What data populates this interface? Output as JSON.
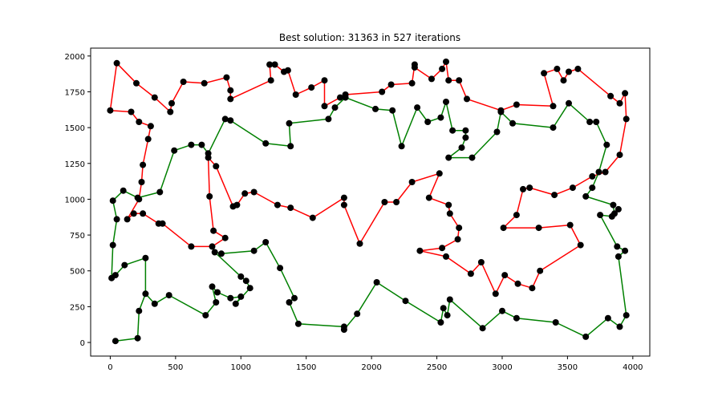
{
  "chart_data": {
    "type": "line",
    "title": "Best solution: 31363 in 527 iterations",
    "xlim": [
      -150,
      4130
    ],
    "ylim": [
      -95,
      2055
    ],
    "x_ticks": [
      0,
      500,
      1000,
      1500,
      2000,
      2500,
      3000,
      3500,
      4000
    ],
    "y_ticks": [
      0,
      250,
      500,
      750,
      1000,
      1250,
      1500,
      1750,
      2000
    ],
    "grid": false,
    "series": [
      {
        "color": "#ff0000",
        "points": [
          [
            0,
            1620
          ],
          [
            50,
            1950
          ],
          [
            200,
            1810
          ],
          [
            340,
            1710
          ],
          [
            460,
            1610
          ],
          [
            470,
            1670
          ],
          [
            560,
            1820
          ],
          [
            720,
            1810
          ],
          [
            890,
            1850
          ],
          [
            920,
            1760
          ],
          [
            920,
            1700
          ],
          [
            1230,
            1830
          ],
          [
            1220,
            1940
          ],
          [
            1260,
            1940
          ],
          [
            1330,
            1890
          ],
          [
            1360,
            1900
          ],
          [
            1420,
            1730
          ],
          [
            1540,
            1780
          ],
          [
            1640,
            1830
          ],
          [
            1640,
            1650
          ],
          [
            1760,
            1710
          ],
          [
            1800,
            1730
          ],
          [
            2080,
            1750
          ],
          [
            2150,
            1800
          ],
          [
            2310,
            1810
          ],
          [
            2330,
            1940
          ],
          [
            2330,
            1920
          ],
          [
            2460,
            1840
          ],
          [
            2540,
            1910
          ],
          [
            2570,
            1960
          ],
          [
            2590,
            1830
          ],
          [
            2670,
            1830
          ],
          [
            2730,
            1700
          ],
          [
            2990,
            1620
          ],
          [
            3110,
            1660
          ],
          [
            3390,
            1650
          ],
          [
            3320,
            1880
          ],
          [
            3420,
            1910
          ],
          [
            3470,
            1830
          ],
          [
            3510,
            1890
          ],
          [
            3580,
            1910
          ],
          [
            3830,
            1720
          ],
          [
            3900,
            1670
          ],
          [
            3940,
            1740
          ],
          [
            3950,
            1560
          ],
          [
            3900,
            1310
          ],
          [
            3790,
            1190
          ],
          [
            3690,
            1160
          ],
          [
            3540,
            1080
          ],
          [
            3400,
            1030
          ],
          [
            3210,
            1080
          ],
          [
            3160,
            1070
          ],
          [
            3110,
            890
          ],
          [
            3010,
            800
          ],
          [
            3280,
            800
          ],
          [
            3520,
            820
          ],
          [
            3600,
            680
          ],
          [
            3290,
            500
          ],
          [
            3230,
            380
          ],
          [
            3120,
            410
          ],
          [
            3020,
            470
          ],
          [
            2950,
            340
          ],
          [
            2840,
            560
          ],
          [
            2760,
            480
          ],
          [
            2570,
            600
          ],
          [
            2370,
            640
          ],
          [
            2540,
            660
          ],
          [
            2660,
            720
          ],
          [
            2670,
            800
          ],
          [
            2600,
            900
          ],
          [
            2590,
            960
          ],
          [
            2440,
            1010
          ],
          [
            2520,
            1180
          ],
          [
            2310,
            1120
          ],
          [
            2190,
            980
          ],
          [
            2100,
            980
          ],
          [
            1910,
            690
          ],
          [
            1790,
            960
          ],
          [
            1790,
            1010
          ],
          [
            1550,
            870
          ],
          [
            1380,
            940
          ],
          [
            1280,
            960
          ],
          [
            1100,
            1050
          ],
          [
            1030,
            1040
          ],
          [
            970,
            960
          ],
          [
            940,
            950
          ],
          [
            810,
            1230
          ],
          [
            750,
            1290
          ],
          [
            760,
            1020
          ],
          [
            790,
            780
          ],
          [
            880,
            730
          ],
          [
            780,
            670
          ],
          [
            620,
            670
          ],
          [
            400,
            830
          ],
          [
            370,
            830
          ],
          [
            250,
            900
          ],
          [
            180,
            900
          ],
          [
            130,
            860
          ],
          [
            220,
            1000
          ],
          [
            240,
            1120
          ],
          [
            250,
            1240
          ],
          [
            290,
            1420
          ],
          [
            310,
            1510
          ],
          [
            220,
            1540
          ],
          [
            160,
            1610
          ],
          [
            0,
            1620
          ]
        ]
      },
      {
        "color": "#008000",
        "points": [
          [
            20,
            990
          ],
          [
            100,
            1060
          ],
          [
            210,
            1010
          ],
          [
            380,
            1050
          ],
          [
            490,
            1340
          ],
          [
            620,
            1380
          ],
          [
            700,
            1380
          ],
          [
            750,
            1320
          ],
          [
            880,
            1560
          ],
          [
            920,
            1550
          ],
          [
            1190,
            1390
          ],
          [
            1380,
            1370
          ],
          [
            1370,
            1530
          ],
          [
            1670,
            1560
          ],
          [
            1720,
            1640
          ],
          [
            1800,
            1710
          ],
          [
            2030,
            1630
          ],
          [
            2160,
            1620
          ],
          [
            2230,
            1370
          ],
          [
            2350,
            1640
          ],
          [
            2430,
            1540
          ],
          [
            2530,
            1570
          ],
          [
            2570,
            1680
          ],
          [
            2620,
            1480
          ],
          [
            2720,
            1480
          ],
          [
            2720,
            1430
          ],
          [
            2690,
            1360
          ],
          [
            2590,
            1290
          ],
          [
            2770,
            1290
          ],
          [
            2960,
            1470
          ],
          [
            2990,
            1610
          ],
          [
            3080,
            1530
          ],
          [
            3390,
            1500
          ],
          [
            3510,
            1670
          ],
          [
            3670,
            1540
          ],
          [
            3720,
            1540
          ],
          [
            3800,
            1380
          ],
          [
            3740,
            1190
          ],
          [
            3690,
            1080
          ],
          [
            3640,
            1020
          ],
          [
            3850,
            960
          ],
          [
            3860,
            900
          ],
          [
            3890,
            930
          ],
          [
            3840,
            880
          ],
          [
            3750,
            890
          ],
          [
            3880,
            670
          ],
          [
            3940,
            640
          ],
          [
            3890,
            600
          ],
          [
            3950,
            190
          ],
          [
            3900,
            110
          ],
          [
            3810,
            170
          ],
          [
            3640,
            40
          ],
          [
            3410,
            140
          ],
          [
            3110,
            170
          ],
          [
            3000,
            220
          ],
          [
            2850,
            100
          ],
          [
            2600,
            300
          ],
          [
            2580,
            190
          ],
          [
            2550,
            240
          ],
          [
            2530,
            140
          ],
          [
            2260,
            290
          ],
          [
            2040,
            420
          ],
          [
            1890,
            200
          ],
          [
            1790,
            90
          ],
          [
            1790,
            110
          ],
          [
            1440,
            130
          ],
          [
            1370,
            280
          ],
          [
            1410,
            310
          ],
          [
            1300,
            520
          ],
          [
            1190,
            700
          ],
          [
            1100,
            640
          ],
          [
            850,
            620
          ],
          [
            800,
            630
          ],
          [
            1000,
            460
          ],
          [
            1040,
            430
          ],
          [
            1070,
            380
          ],
          [
            960,
            270
          ],
          [
            1000,
            320
          ],
          [
            920,
            310
          ],
          [
            820,
            350
          ],
          [
            780,
            390
          ],
          [
            810,
            280
          ],
          [
            730,
            190
          ],
          [
            450,
            330
          ],
          [
            340,
            270
          ],
          [
            270,
            340
          ],
          [
            270,
            590
          ],
          [
            110,
            540
          ],
          [
            40,
            470
          ],
          [
            10,
            450
          ],
          [
            20,
            680
          ],
          [
            50,
            860
          ],
          [
            20,
            990
          ]
        ]
      },
      {
        "color": "#008000",
        "points": [
          [
            40,
            10
          ],
          [
            210,
            30
          ],
          [
            220,
            220
          ],
          [
            270,
            340
          ]
        ]
      }
    ]
  }
}
